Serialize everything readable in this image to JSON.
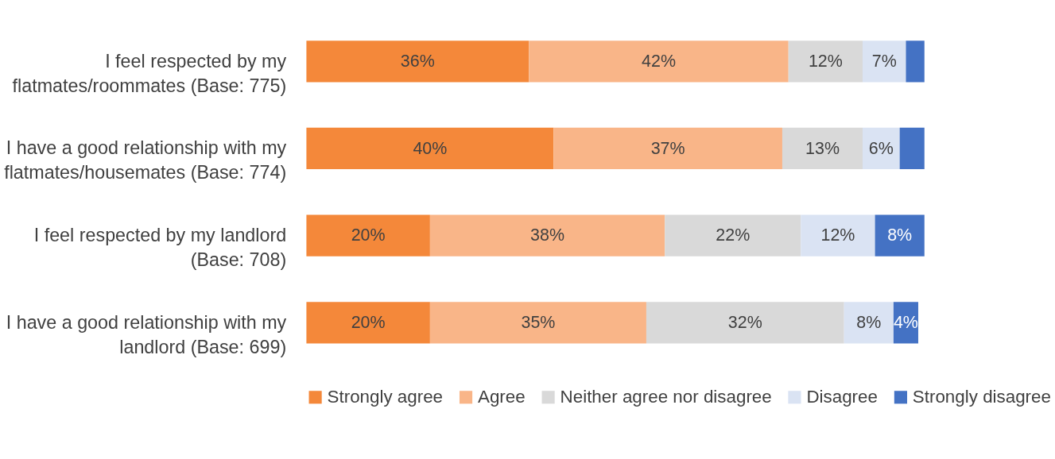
{
  "chart_data": {
    "type": "bar",
    "orientation": "horizontal",
    "stacked": true,
    "xlim": [
      0,
      100
    ],
    "tick_labels": "y",
    "legend": "bottom",
    "categories": [
      "I feel respected by my flatmates/roommates (Base: 775)",
      "I have a good relationship with my flatmates/housemates (Base: 774)",
      "I feel respected by my landlord (Base: 708)",
      "I have a good relationship with my landlord (Base: 699)"
    ],
    "series": [
      {
        "name": "Strongly agree",
        "color": "#f4883a",
        "values": [
          36,
          40,
          20,
          20
        ],
        "value_labels": [
          "36%",
          "40%",
          "20%",
          "20%"
        ]
      },
      {
        "name": "Agree",
        "color": "#f9b588",
        "values": [
          42,
          37,
          38,
          35
        ],
        "value_labels": [
          "42%",
          "37%",
          "38%",
          "35%"
        ]
      },
      {
        "name": "Neither agree nor disagree",
        "color": "#d9d9d9",
        "values": [
          12,
          13,
          22,
          32
        ],
        "value_labels": [
          "12%",
          "13%",
          "22%",
          "32%"
        ]
      },
      {
        "name": "Disagree",
        "color": "#dae3f3",
        "values": [
          7,
          6,
          12,
          8
        ],
        "value_labels": [
          "7%",
          "6%",
          "12%",
          "8%"
        ]
      },
      {
        "name": "Strongly disagree",
        "color": "#4472c4",
        "values": [
          3,
          4,
          8,
          4
        ],
        "value_labels": [
          null,
          null,
          "8%",
          "4%"
        ]
      }
    ]
  }
}
